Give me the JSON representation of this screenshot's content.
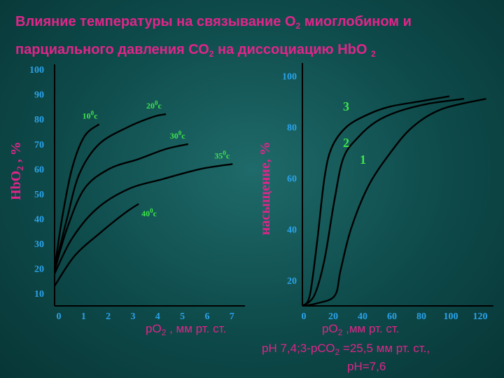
{
  "title": {
    "line1_a": "Влияние температуры на связывание О",
    "line1_sub": "2",
    "line1_b": " миоглобином и",
    "line2_a": "парциального давления СО",
    "line2_sub": "2",
    "line2_b": " на диссоциацию HbO ",
    "line2_sub2": "2"
  },
  "colors": {
    "accent": "#e0258a",
    "tick": "#2aa2e8",
    "curve_label": "#3ee64a",
    "axis": "#000000"
  },
  "chart_data": [
    {
      "type": "line",
      "ylabel_a": "HbO",
      "ylabel_sub": "2",
      "ylabel_b": " , %",
      "xlabel_a": "рО",
      "xlabel_sub": "2",
      "xlabel_b": " , мм рт. ст.",
      "x_ticks": [
        "0",
        "1",
        "2",
        "3",
        "4",
        "5",
        "6",
        "7"
      ],
      "y_ticks": [
        "10",
        "20",
        "30",
        "40",
        "50",
        "60",
        "70",
        "80",
        "90",
        "100"
      ],
      "xlim": [
        0,
        7.7
      ],
      "ylim": [
        10,
        100
      ],
      "series": [
        {
          "name_num": "10",
          "name_deg": "0",
          "name_unit": "c",
          "x": [
            0,
            0.3,
            0.7,
            1.2,
            1.8
          ],
          "y": [
            20,
            40,
            60,
            73,
            78
          ]
        },
        {
          "name_num": "20",
          "name_deg": "0",
          "name_unit": "c",
          "x": [
            0,
            0.5,
            1.0,
            1.8,
            3.0,
            4.0,
            4.5
          ],
          "y": [
            20,
            40,
            58,
            70,
            77,
            81,
            82
          ]
        },
        {
          "name_num": "30",
          "name_deg": "0",
          "name_unit": "c",
          "x": [
            0,
            0.5,
            1.2,
            2.2,
            3.4,
            4.5,
            5.4
          ],
          "y": [
            19,
            36,
            52,
            60,
            64,
            68,
            70
          ]
        },
        {
          "name_num": "35",
          "name_deg": "0",
          "name_unit": "c",
          "x": [
            0,
            0.7,
            1.7,
            3.0,
            4.4,
            5.9,
            7.2
          ],
          "y": [
            18,
            32,
            44,
            52,
            56,
            60,
            62
          ]
        },
        {
          "name_num": "40",
          "name_deg": "0",
          "name_unit": "c",
          "x": [
            0,
            0.8,
            1.8,
            2.8,
            3.4
          ],
          "y": [
            13,
            25,
            34,
            42,
            46
          ]
        }
      ]
    },
    {
      "type": "line",
      "ylabel": "насыщение, %",
      "xlabel_a": "рО",
      "xlabel_sub": "2",
      "xlabel_b": " ,мм рт. ст.",
      "caption2_a": "рН 7,4;3-рСО",
      "caption2_sub": "2",
      "caption2_b": " =25,5 мм рт. ст.,",
      "caption3": "рН=7,6",
      "x_ticks": [
        "0",
        "20",
        "40",
        "60",
        "80",
        "100",
        "120"
      ],
      "y_ticks": [
        "20",
        "40",
        "60",
        "80",
        "100"
      ],
      "xlim": [
        0,
        130
      ],
      "ylim": [
        10,
        105
      ],
      "series": [
        {
          "name": "3",
          "x": [
            0,
            5,
            10,
            15,
            20,
            30,
            45,
            60,
            80,
            100
          ],
          "y": [
            10,
            14,
            35,
            60,
            72,
            80,
            85,
            88,
            90,
            92
          ]
        },
        {
          "name": "2",
          "x": [
            0,
            8,
            15,
            22,
            28,
            38,
            50,
            65,
            85,
            110
          ],
          "y": [
            10,
            14,
            28,
            52,
            68,
            76,
            82,
            86,
            89,
            91
          ]
        },
        {
          "name": "1",
          "x": [
            0,
            10,
            22,
            26,
            33,
            45,
            60,
            75,
            95,
            125
          ],
          "y": [
            10,
            11,
            14,
            24,
            40,
            57,
            70,
            80,
            87,
            91
          ]
        }
      ]
    }
  ]
}
